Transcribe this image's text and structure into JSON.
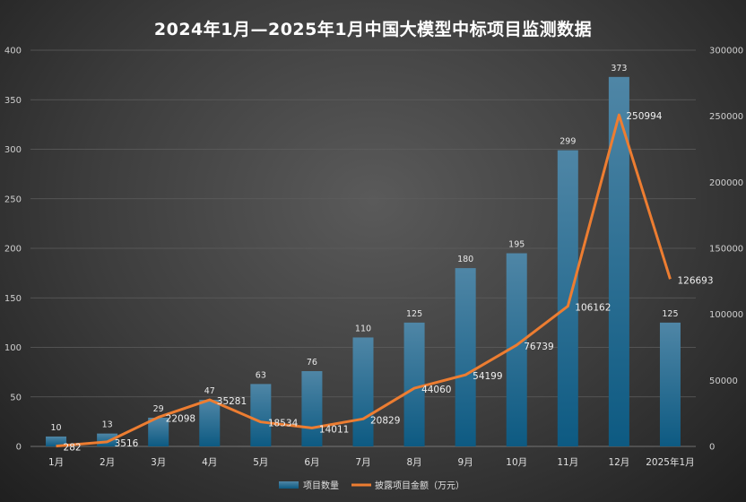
{
  "chart_data": {
    "type": "bar+line",
    "title": "2024年1月—2025年1月中国大模型中标项目监测数据",
    "categories": [
      "1月",
      "2月",
      "3月",
      "4月",
      "5月",
      "6月",
      "7月",
      "8月",
      "9月",
      "10月",
      "11月",
      "12月",
      "2025年1月"
    ],
    "series": [
      {
        "name": "项目数量",
        "type": "bar",
        "axis": "left",
        "values": [
          10,
          13,
          29,
          47,
          63,
          76,
          110,
          125,
          180,
          195,
          299,
          373,
          125
        ]
      },
      {
        "name": "披露项目金额（万元）",
        "type": "line",
        "axis": "right",
        "values": [
          282,
          3516,
          22098,
          35281,
          18534,
          14011,
          20829,
          44060,
          54199,
          76739,
          106162,
          250994,
          126693
        ]
      }
    ],
    "y_left": {
      "min": 0,
      "max": 400,
      "ticks": [
        0,
        50,
        100,
        150,
        200,
        250,
        300,
        350,
        400
      ]
    },
    "y_right": {
      "min": 0,
      "max": 300000,
      "ticks": [
        0,
        50000,
        100000,
        150000,
        200000,
        250000,
        300000
      ]
    },
    "grid": true,
    "legend_position": "bottom",
    "colors": {
      "bar_top": "#4f86a6",
      "bar_bottom": "#0d5a82",
      "line": "#ed7d31"
    }
  }
}
